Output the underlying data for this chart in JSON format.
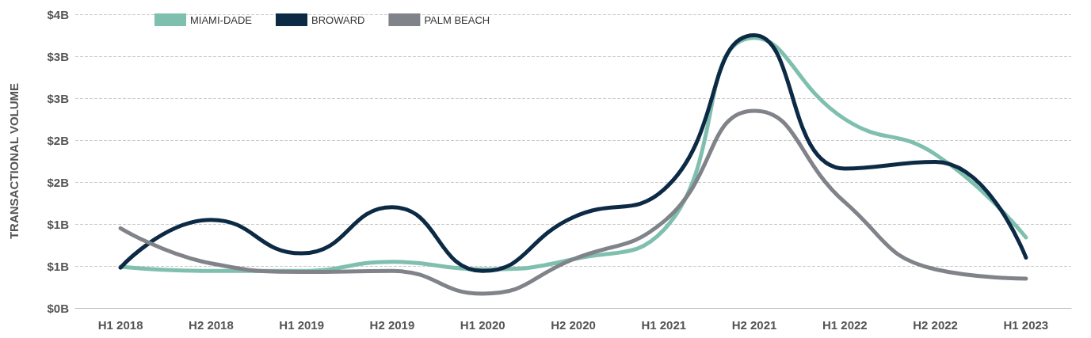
{
  "chart_data": {
    "type": "line",
    "ylabel": "TRANSACTIONAL VOLUME",
    "categories": [
      "H1 2018",
      "H2 2018",
      "H1 2019",
      "H2 2019",
      "H1 2020",
      "H2 2020",
      "H1 2021",
      "H2 2021",
      "H1 2022",
      "H2 2022",
      "H1 2023"
    ],
    "series": [
      {
        "name": "MIAMI-DADE",
        "color": "#7fbfae",
        "values": [
          0.49,
          0.44,
          0.44,
          0.55,
          0.46,
          0.58,
          0.93,
          3.22,
          2.25,
          1.83,
          0.84
        ]
      },
      {
        "name": "BROWARD",
        "color": "#0d2a45",
        "values": [
          0.48,
          1.05,
          0.65,
          1.2,
          0.44,
          1.08,
          1.41,
          3.25,
          1.66,
          1.74,
          0.6
        ]
      },
      {
        "name": "PALM BEACH",
        "color": "#808389",
        "values": [
          0.95,
          0.53,
          0.43,
          0.44,
          0.17,
          0.58,
          1.03,
          2.35,
          1.26,
          0.46,
          0.35
        ]
      }
    ],
    "ylim": [
      0,
      3.5
    ],
    "yticks": [
      {
        "value": 0,
        "label": "$0B"
      },
      {
        "value": 0.5,
        "label": "$1B"
      },
      {
        "value": 1,
        "label": "$1B"
      },
      {
        "value": 1.5,
        "label": "$2B"
      },
      {
        "value": 2,
        "label": "$2B"
      },
      {
        "value": 2.5,
        "label": "$3B"
      },
      {
        "value": 3,
        "label": "$3B"
      },
      {
        "value": 3.5,
        "label": "$4B"
      }
    ],
    "grid": "y",
    "legend": "top left",
    "marker": "none",
    "line_style": "solid"
  }
}
